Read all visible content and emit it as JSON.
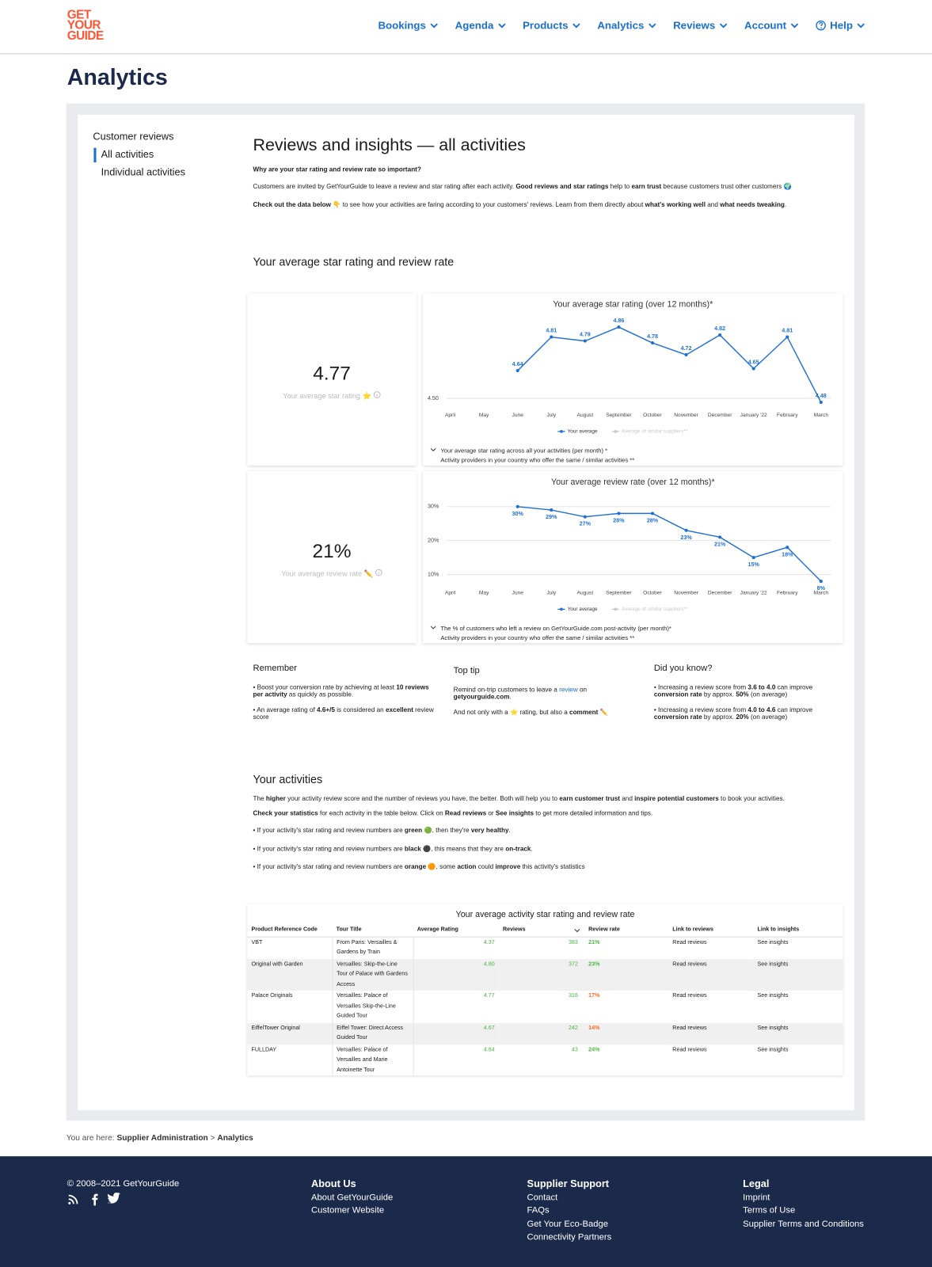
{
  "header": {
    "logo": [
      "GET",
      "YOUR",
      "GUIDE"
    ],
    "nav": [
      "Bookings",
      "Agenda",
      "Products",
      "Analytics",
      "Reviews",
      "Account",
      "Help"
    ]
  },
  "page_title": "Analytics",
  "sidebar": {
    "heading": "Customer reviews",
    "items": [
      "All activities",
      "Individual activities"
    ]
  },
  "intro": {
    "title": "Reviews and insights — all activities",
    "paragraphs": [
      [
        {
          "b": "Why are your star rating and review rate so important?"
        }
      ],
      [
        "Customers are invited by GetYourGuide to leave a review and star rating after each activity. ",
        {
          "b": "Good reviews and star ratings"
        },
        " help to ",
        {
          "b": "earn trust"
        },
        " because customers trust other customers 🌍"
      ],
      [
        {
          "b": "Check out the data below"
        },
        " 👇 to see how your activities are faring according to your customers' reviews. Learn from them directly about ",
        {
          "b": "what's working well"
        },
        " and ",
        {
          "b": "what needs tweaking"
        },
        "."
      ]
    ]
  },
  "rating_section": {
    "title": "Your average star rating and review rate",
    "cards": [
      {
        "value": "4.77",
        "label": "Your average star rating ⭐"
      },
      {
        "value": "21%",
        "label": "Your average review rate ✏️"
      }
    ]
  },
  "chart_data": [
    {
      "type": "line",
      "title": "Your average star rating (over 12 months)*",
      "categories": [
        "April",
        "May",
        "June",
        "July",
        "August",
        "September",
        "October",
        "November",
        "December",
        "January '22",
        "February",
        "March"
      ],
      "series": [
        {
          "name": "Your average",
          "color": "#1f6fd6",
          "values": [
            null,
            null,
            4.64,
            4.81,
            4.79,
            4.86,
            4.78,
            4.72,
            4.82,
            4.65,
            4.81,
            4.48
          ]
        },
        {
          "name": "Average of similar suppliers**",
          "color": "#c8c8c8",
          "values": [
            null,
            null,
            null,
            null,
            null,
            null,
            null,
            null,
            null,
            null,
            null,
            null
          ]
        }
      ],
      "ylim": [
        4.5,
        4.9
      ],
      "yticks": [
        {
          "value": 4.5,
          "label": "4.50"
        }
      ],
      "grid": true,
      "footnotes": [
        "Your average star rating across all your activities (per month) *",
        "Activity providers in your country who offer the same / similar activities **"
      ]
    },
    {
      "type": "line",
      "title": "Your average review rate (over 12 months)*",
      "categories": [
        "April",
        "May",
        "June",
        "July",
        "August",
        "September",
        "October",
        "November",
        "December",
        "January '22",
        "February",
        "March"
      ],
      "series": [
        {
          "name": "Your average",
          "color": "#1f6fd6",
          "values": [
            null,
            null,
            30,
            29,
            27,
            28,
            28,
            23,
            21,
            15,
            18,
            8
          ],
          "value_labels": [
            null,
            null,
            "30%",
            "29%",
            "27%",
            "28%",
            "28%",
            "23%",
            "21%",
            "15%",
            "18%",
            "8%"
          ]
        },
        {
          "name": "Average of similar suppliers**",
          "color": "#c8c8c8",
          "values": [
            null,
            null,
            null,
            null,
            null,
            null,
            null,
            null,
            null,
            null,
            null,
            null
          ]
        }
      ],
      "ylim": [
        5,
        32
      ],
      "yticks": [
        {
          "value": 10,
          "label": "10%"
        },
        {
          "value": 20,
          "label": "20%"
        },
        {
          "value": 30,
          "label": "30%"
        }
      ],
      "grid": true,
      "footnotes": [
        "The % of customers who left a review on GetYourGuide.com post-activity (per month)*",
        "Activity providers in your country who offer the same / similar activities **"
      ]
    }
  ],
  "tips": [
    {
      "title": "Remember",
      "items": [
        [
          "• Boost your conversion rate by achieving at least ",
          {
            "b": "10 reviews per activity"
          },
          " as quickly as possible."
        ],
        [
          "• An average rating of ",
          {
            "b": "4.6+/5"
          },
          " is considered an ",
          {
            "b": "excellent"
          },
          " review score"
        ]
      ]
    },
    {
      "title": "Top tip",
      "items": [
        [
          "Remind on-trip customers to leave a ",
          {
            "a": "review"
          },
          " on ",
          {
            "b": "getyourguide.com"
          },
          "."
        ],
        [
          "And not only with a ⭐ rating, but also a ",
          {
            "b": "comment"
          },
          " ✏️"
        ]
      ]
    },
    {
      "title": "Did you know?",
      "items": [
        [
          "• Increasing a review score from ",
          {
            "b": "3.6 to 4.0"
          },
          " can improve ",
          {
            "b": "conversion rate"
          },
          " by approx. ",
          {
            "b": "50%"
          },
          " (on average)"
        ],
        [
          "• Increasing a review score from ",
          {
            "b": "4.0 to 4.6"
          },
          " can improve ",
          {
            "b": "conversion rate"
          },
          " by approx. ",
          {
            "b": "20%"
          },
          " (on average)"
        ]
      ]
    }
  ],
  "activities": {
    "title": "Your activities",
    "paragraphs": [
      [
        "The ",
        {
          "b": "higher"
        },
        " your activity review score and the number of reviews you have, the better. Both will help you to ",
        {
          "b": "earn customer trust"
        },
        " and ",
        {
          "b": "inspire potential customers"
        },
        " to book your activities."
      ],
      [
        {
          "b": "Check your statistics"
        },
        " for each activity in the table below. Click on ",
        {
          "b": "Read reviews"
        },
        " or ",
        {
          "b": "See insights"
        },
        " to get more detailed information and tips."
      ],
      [
        "• If your activity's star rating and review numbers are ",
        {
          "b": "green"
        },
        " 🟢, then they're ",
        {
          "b": "very healthy"
        },
        "."
      ],
      [
        "• If your activity's star rating and review numbers are ",
        {
          "b": "black"
        },
        " ⚫, this means that they are ",
        {
          "b": "on-track"
        },
        "."
      ],
      [
        "• If your activity's star rating and review numbers are ",
        {
          "b": "orange"
        },
        " 🟠, some ",
        {
          "b": "action"
        },
        " could ",
        {
          "b": "improve"
        },
        " this activity's statistics"
      ]
    ]
  },
  "table": {
    "title": "Your average activity star rating and review rate",
    "columns": [
      "Product Reference Code",
      "Tour Title",
      "Average Rating",
      "Reviews",
      "Review rate",
      "Link to reviews",
      "Link to insights"
    ],
    "rows": [
      [
        "VBT",
        "From Paris: Versailles & Gardens by Train",
        "4.37",
        "383",
        "21%",
        "Read reviews",
        "See insights"
      ],
      [
        "Original with Garden",
        "Versailles: Skip-the-Line Tour of Palace with Gardens Access",
        "4.80",
        "372",
        "23%",
        "Read reviews",
        "See insights"
      ],
      [
        "Palace Originals",
        "Versailles: Palace of Versailles Skip-the-Line Guided Tour",
        "4.77",
        "316",
        "17%",
        "Read reviews",
        "See insights"
      ],
      [
        "EiffelTower Original",
        "Eiffel Tower: Direct Access Guided Tour",
        "4.67",
        "242",
        "14%",
        "Read reviews",
        "See insights"
      ],
      [
        "FULLDAY",
        "Versailles: Palace of Versailles and Marie Antoinette Tour",
        "4.84",
        "43",
        "24%",
        "Read reviews",
        "See insights"
      ]
    ],
    "review_rate_status": [
      "green",
      "green",
      "orange",
      "orange",
      "green"
    ]
  },
  "breadcrumb": {
    "label": "You are here:",
    "items": [
      "Supplier Administration",
      "Analytics"
    ],
    "separator": ">"
  },
  "footer": {
    "copyright": "© 2008–2021 GetYourGuide",
    "columns": [
      {
        "title": "About Us",
        "links": [
          "About GetYourGuide",
          "Customer Website"
        ]
      },
      {
        "title": "Supplier Support",
        "links": [
          "Contact",
          "FAQs",
          "Get Your Eco-Badge",
          "Connectivity Partners"
        ]
      },
      {
        "title": "Legal",
        "links": [
          "Imprint",
          "Terms of Use",
          "Supplier Terms and Conditions"
        ]
      }
    ]
  }
}
